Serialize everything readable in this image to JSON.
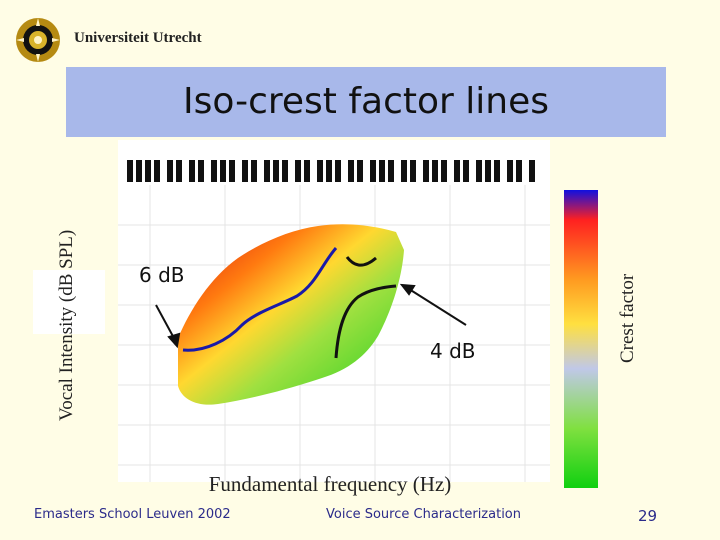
{
  "header": {
    "institution": "Universiteit Utrecht",
    "logo_icon": "university-seal-icon"
  },
  "slide": {
    "title": "Iso-crest factor lines",
    "page_number": "29"
  },
  "figure": {
    "ylabel": "Vocal Intensity (dB SPL)",
    "xlabel": "Fundamental frequency (Hz)",
    "colorbar_label": "Crest factor",
    "annotations": [
      "6 dB",
      "4 dB"
    ],
    "colors": {
      "iso_line_1": "#1a1aa8",
      "iso_line_2": "#111111",
      "title_bar": "#a8b8ea",
      "slide_background": "#fffde6"
    }
  },
  "footer": {
    "left": "Emasters School Leuven 2002",
    "center": "Voice Source Characterization"
  }
}
